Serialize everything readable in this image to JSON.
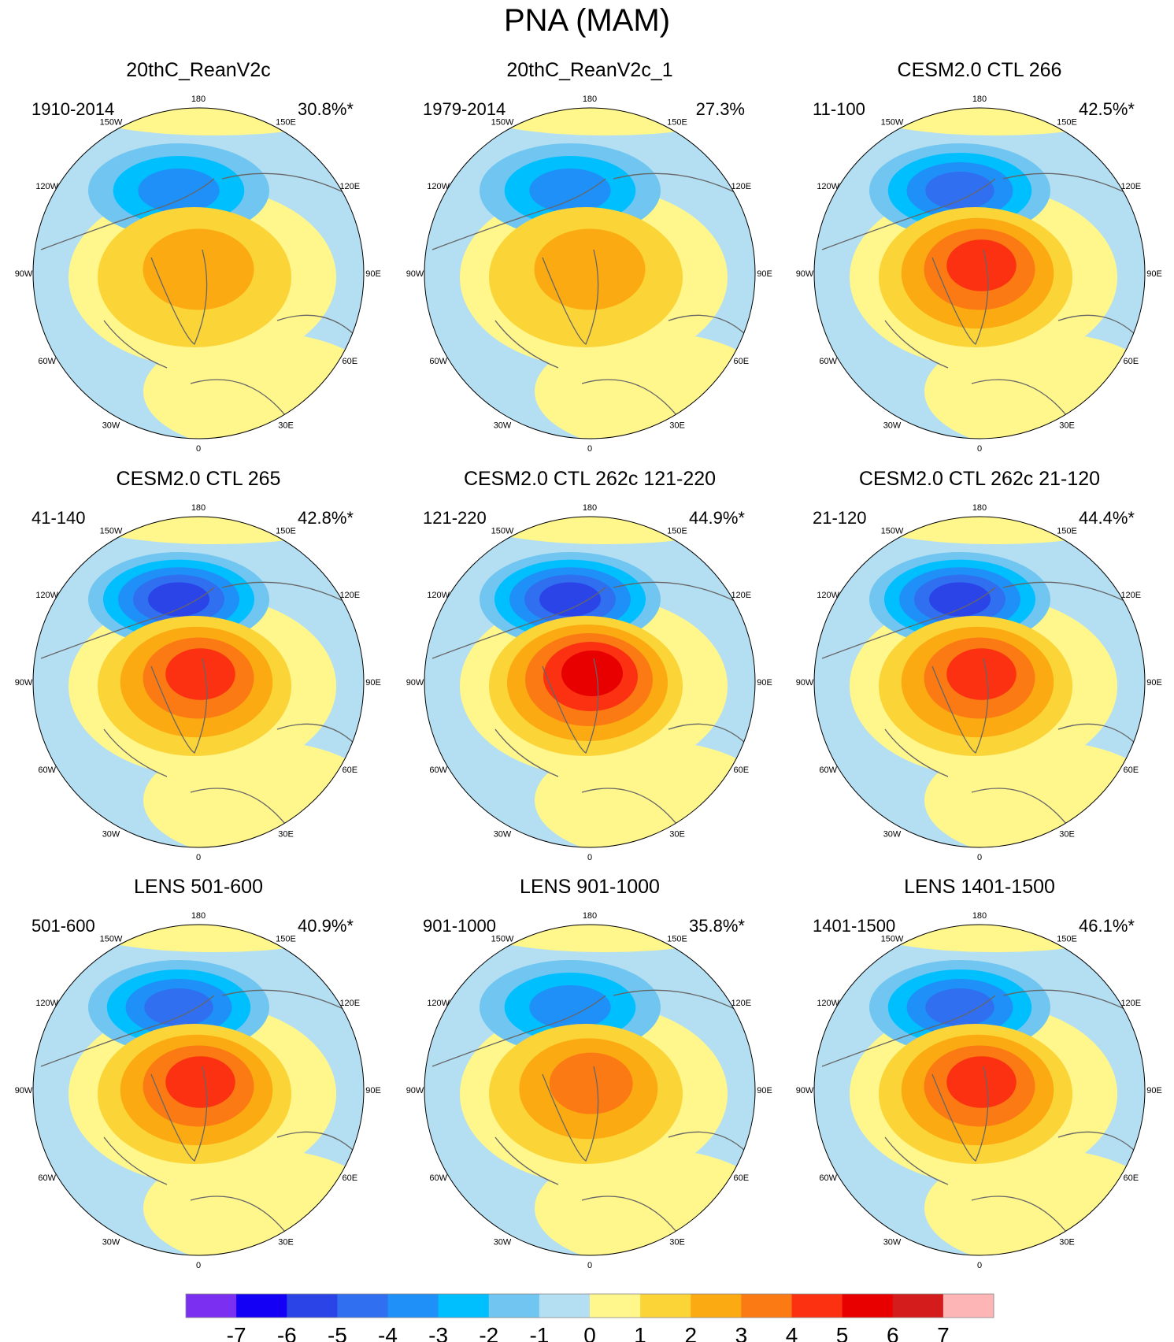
{
  "title": "PNA (MAM)",
  "chart_data": {
    "type": "polar-contour-map-grid",
    "projection": "north polar stereographic",
    "variable": "PNA regression pattern (MAM)",
    "longitude_labels": [
      "180",
      "150E",
      "120E",
      "90E",
      "60E",
      "30E",
      "0",
      "30W",
      "60W",
      "90W",
      "120W",
      "150W"
    ],
    "panels": [
      {
        "title": "20thC_ReanV2c",
        "period": "1910-2014",
        "variance": "30.8%*",
        "features": [
          {
            "name": "north-pacific-low",
            "min": -3
          },
          {
            "name": "north-america-high",
            "max": 2
          },
          {
            "name": "atlantic-high",
            "max": 1
          }
        ]
      },
      {
        "title": "20thC_ReanV2c_1",
        "period": "1979-2014",
        "variance": "27.3%",
        "features": [
          {
            "name": "north-pacific-low",
            "min": -3
          },
          {
            "name": "north-america-high",
            "max": 2
          },
          {
            "name": "atlantic-high",
            "max": 1
          }
        ]
      },
      {
        "title": "CESM2.0 CTL 266",
        "period": "11-100",
        "variance": "42.5%*",
        "features": [
          {
            "name": "north-pacific-low",
            "min": -4
          },
          {
            "name": "north-america-high",
            "max": 4
          },
          {
            "name": "atlantic-high",
            "max": 1
          }
        ]
      },
      {
        "title": "CESM2.0 CTL 265",
        "period": "41-140",
        "variance": "42.8%*",
        "features": [
          {
            "name": "north-pacific-low",
            "min": -5
          },
          {
            "name": "north-america-high",
            "max": 4
          },
          {
            "name": "atlantic-high",
            "max": 1
          }
        ]
      },
      {
        "title": "CESM2.0 CTL 262c 121-220",
        "period": "121-220",
        "variance": "44.9%*",
        "features": [
          {
            "name": "north-pacific-low",
            "min": -5
          },
          {
            "name": "north-america-high",
            "max": 5
          },
          {
            "name": "atlantic-high",
            "max": 1
          }
        ]
      },
      {
        "title": "CESM2.0 CTL 262c 21-120",
        "period": "21-120",
        "variance": "44.4%*",
        "features": [
          {
            "name": "north-pacific-low",
            "min": -5
          },
          {
            "name": "north-america-high",
            "max": 4
          },
          {
            "name": "atlantic-high",
            "max": 1
          }
        ]
      },
      {
        "title": "LENS 501-600",
        "period": "501-600",
        "variance": "40.9%*",
        "features": [
          {
            "name": "north-pacific-low",
            "min": -4
          },
          {
            "name": "north-america-high",
            "max": 4
          },
          {
            "name": "atlantic-high",
            "max": 1
          }
        ]
      },
      {
        "title": "LENS 901-1000",
        "period": "901-1000",
        "variance": "35.8%*",
        "features": [
          {
            "name": "north-pacific-low",
            "min": -3
          },
          {
            "name": "north-america-high",
            "max": 3
          },
          {
            "name": "atlantic-high",
            "max": 1
          }
        ]
      },
      {
        "title": "LENS 1401-1500",
        "period": "1401-1500",
        "variance": "46.1%*",
        "features": [
          {
            "name": "north-pacific-low",
            "min": -4
          },
          {
            "name": "north-america-high",
            "max": 4
          },
          {
            "name": "atlantic-high",
            "max": 1
          }
        ]
      }
    ],
    "colorbar": {
      "labels": [
        "-7",
        "-6",
        "-5",
        "-4",
        "-3",
        "-2",
        "-1",
        "0",
        "1",
        "2",
        "3",
        "4",
        "5",
        "6",
        "7"
      ],
      "colors": [
        "#7b2ff0",
        "#1400f4",
        "#2b44e8",
        "#2f6ff0",
        "#1e90f8",
        "#00bfff",
        "#70c6f0",
        "#b4dff2",
        "#fff68c",
        "#fbd437",
        "#fbaa11",
        "#fb7a14",
        "#fb3112",
        "#e80000",
        "#d41c1c",
        "#fdb5b5"
      ]
    }
  }
}
